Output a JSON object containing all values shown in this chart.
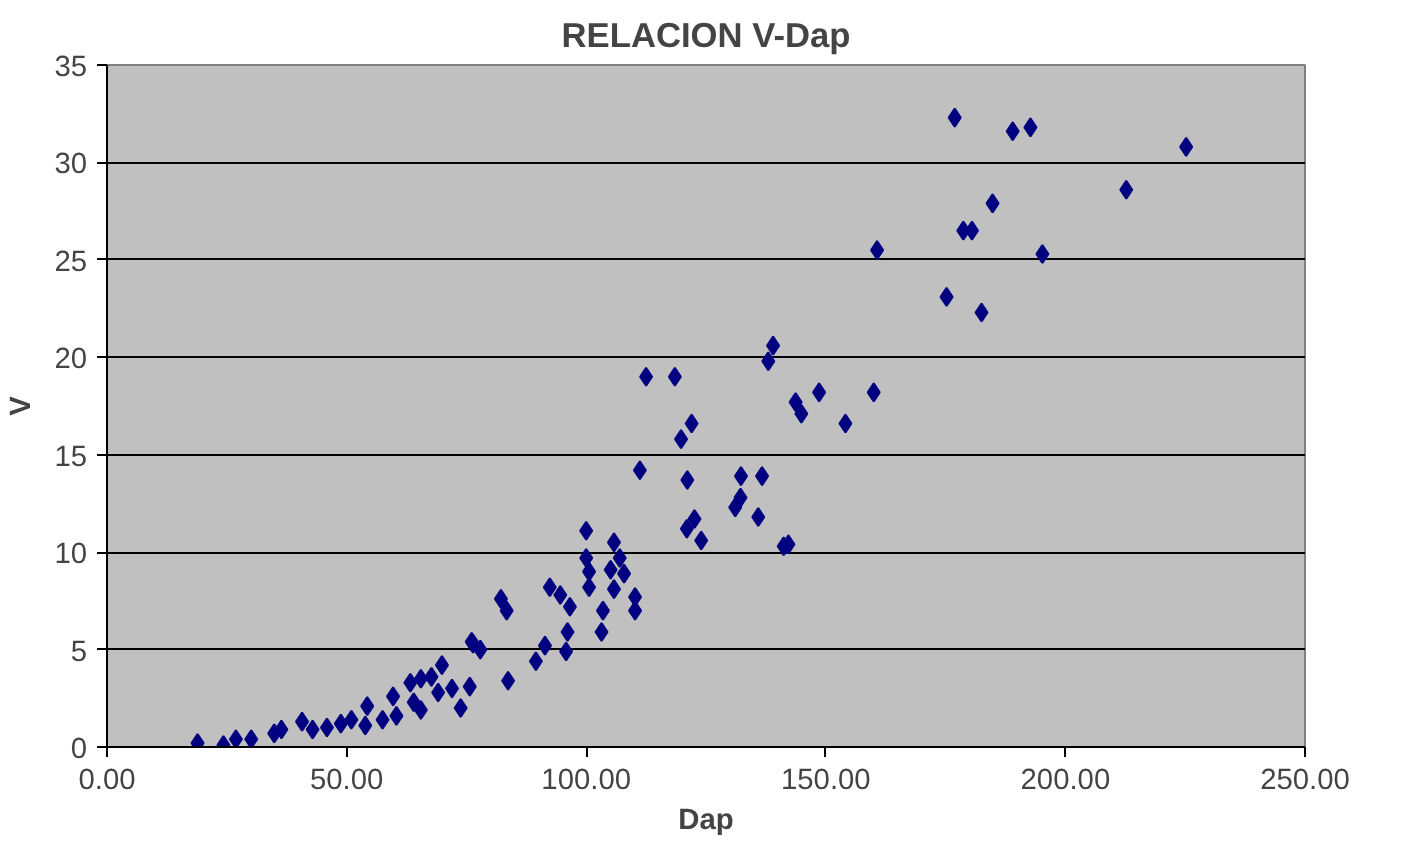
{
  "chart_data": {
    "type": "scatter",
    "title": "RELACION V-Dap",
    "xlabel": "Dap",
    "ylabel": "V",
    "marker": "diamond",
    "grid": "y",
    "xlim": [
      0,
      250
    ],
    "ylim": [
      0,
      35
    ],
    "xticks": [
      {
        "value": 0,
        "label": "0.00"
      },
      {
        "value": 50,
        "label": "50.00"
      },
      {
        "value": 100,
        "label": "100.00"
      },
      {
        "value": 150,
        "label": "150.00"
      },
      {
        "value": 200,
        "label": "200.00"
      },
      {
        "value": 250,
        "label": "250.00"
      }
    ],
    "yticks": [
      0,
      5,
      10,
      15,
      20,
      25,
      30,
      35
    ],
    "series": [
      {
        "color": "#000080",
        "x": [
          18.9,
          24.3,
          26.9,
          30.1,
          34.9,
          36.4,
          40.7,
          42.9,
          45.9,
          48.8,
          51,
          54.3,
          53.9,
          57.5,
          59.7,
          60.4,
          63.3,
          65.5,
          64,
          65.5,
          69.1,
          69.9,
          72,
          73.8,
          75.7,
          76.1,
          67.7,
          76.4,
          77.9,
          83.7,
          82.2,
          83.4,
          89.5,
          91.4,
          92.4,
          94.6,
          95.8,
          96.1,
          96.6,
          100,
          100,
          100.6,
          100.6,
          103.2,
          103.5,
          105.1,
          105.8,
          105.8,
          107,
          107.9,
          110.2,
          110.2,
          111.2,
          112.5,
          118.5,
          119.8,
          121.1,
          122,
          121,
          122.6,
          124,
          131.1,
          132.2,
          132.3,
          135.9,
          136.7,
          138,
          139,
          141.2,
          142.2,
          143.7,
          144.9,
          148.6,
          154.1,
          160,
          160.7,
          175.2,
          176.9,
          178.7,
          180.5,
          182.5,
          184.8,
          189,
          192.7,
          195.2,
          212.7,
          225.2
        ],
        "values": [
          0.2,
          0.1,
          0.4,
          0.4,
          0.7,
          0.9,
          1.3,
          0.9,
          1.0,
          1.2,
          1.4,
          2.1,
          1.1,
          1.4,
          2.6,
          1.6,
          3.3,
          3.5,
          2.3,
          1.9,
          2.8,
          4.2,
          3.0,
          2.0,
          3.1,
          5.4,
          3.6,
          5.3,
          5.0,
          3.4,
          7.6,
          7.0,
          4.4,
          5.2,
          8.2,
          7.8,
          4.9,
          5.9,
          7.2,
          11.1,
          9.7,
          9.0,
          8.2,
          5.9,
          7.0,
          9.1,
          10.5,
          8.1,
          9.7,
          8.9,
          7.7,
          7.0,
          14.2,
          19.0,
          19.0,
          15.8,
          13.7,
          16.6,
          11.2,
          11.7,
          10.6,
          12.3,
          12.8,
          13.9,
          11.8,
          13.9,
          19.8,
          20.6,
          10.3,
          10.4,
          17.7,
          17.1,
          18.2,
          16.6,
          18.2,
          25.5,
          23.1,
          32.3,
          26.5,
          26.5,
          22.3,
          27.9,
          31.6,
          31.8,
          25.3,
          28.6,
          30.8
        ]
      }
    ]
  }
}
